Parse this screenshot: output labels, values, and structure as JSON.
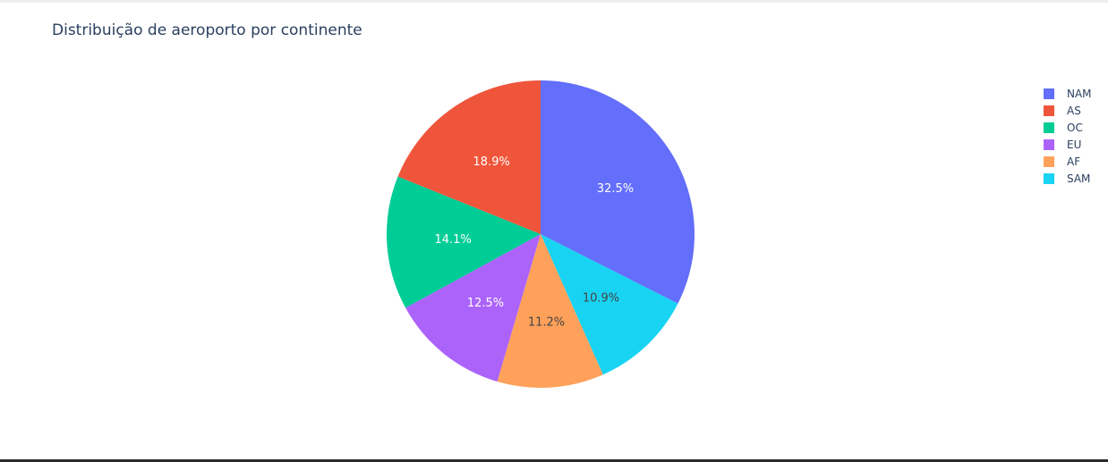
{
  "chart_data": {
    "type": "pie",
    "title": "Distribuição de aeroporto por continente",
    "slices": [
      {
        "label": "NAM",
        "value": 32.5,
        "text": "32.5%",
        "color": "#636efa"
      },
      {
        "label": "AS",
        "value": 18.9,
        "text": "18.9%",
        "color": "#ef553b"
      },
      {
        "label": "OC",
        "value": 14.1,
        "text": "14.1%",
        "color": "#00cc96"
      },
      {
        "label": "EU",
        "value": 12.5,
        "text": "12.5%",
        "color": "#ab63fa"
      },
      {
        "label": "AF",
        "value": 11.2,
        "text": "11.2%",
        "color": "#ffa15a"
      },
      {
        "label": "SAM",
        "value": 10.9,
        "text": "10.9%",
        "color": "#19d3f3"
      }
    ],
    "slice_order": [
      "NAM",
      "SAM",
      "AF",
      "EU",
      "OC",
      "AS"
    ],
    "direction": "clockwise",
    "legend_position": "right"
  }
}
